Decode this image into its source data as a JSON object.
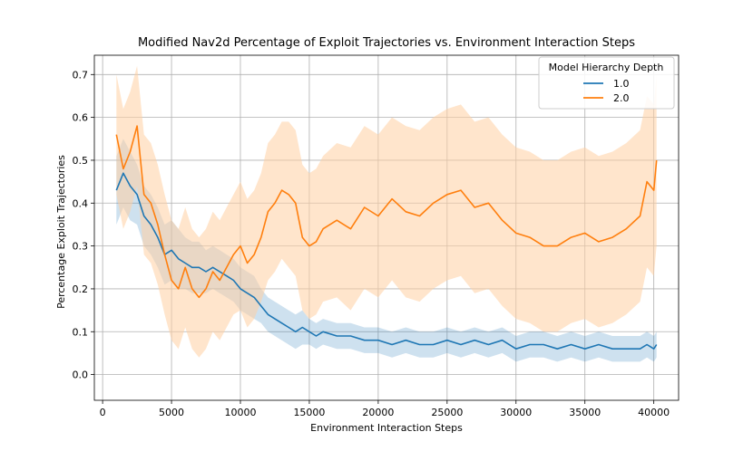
{
  "chart_data": {
    "type": "line",
    "title": "Modified Nav2d Percentage of Exploit Trajectories vs. Environment Interaction Steps",
    "xlabel": "Environment Interaction Steps",
    "ylabel": "Percentage Exploit Trajectories",
    "xlim": [
      -600,
      41800
    ],
    "ylim": [
      -0.06,
      0.745
    ],
    "xticks": [
      0,
      5000,
      10000,
      15000,
      20000,
      25000,
      30000,
      35000,
      40000
    ],
    "yticks": [
      0.0,
      0.1,
      0.2,
      0.3,
      0.4,
      0.5,
      0.6,
      0.7
    ],
    "ytick_labels": [
      "0.0",
      "0.1",
      "0.2",
      "0.3",
      "0.4",
      "0.5",
      "0.6",
      "0.7"
    ],
    "grid": true,
    "legend": {
      "title": "Model Hierarchy Depth",
      "position": "top-right"
    },
    "series": [
      {
        "name": "1.0",
        "color": "#1f77b4",
        "band_color": "#1f77b4",
        "x": [
          1000,
          1500,
          2000,
          2500,
          3000,
          3500,
          4000,
          4500,
          5000,
          5500,
          6000,
          6500,
          7000,
          7500,
          8000,
          8500,
          9000,
          9500,
          10000,
          10500,
          11000,
          11500,
          12000,
          12500,
          13000,
          13500,
          14000,
          14500,
          15000,
          15500,
          16000,
          17000,
          18000,
          19000,
          20000,
          21000,
          22000,
          23000,
          24000,
          25000,
          26000,
          27000,
          28000,
          29000,
          30000,
          31000,
          32000,
          33000,
          34000,
          35000,
          36000,
          37000,
          38000,
          39000,
          39500,
          40000,
          40200
        ],
        "values": [
          0.43,
          0.47,
          0.44,
          0.42,
          0.37,
          0.35,
          0.32,
          0.28,
          0.29,
          0.27,
          0.26,
          0.25,
          0.25,
          0.24,
          0.25,
          0.24,
          0.23,
          0.22,
          0.2,
          0.19,
          0.18,
          0.16,
          0.14,
          0.13,
          0.12,
          0.11,
          0.1,
          0.11,
          0.1,
          0.09,
          0.1,
          0.09,
          0.09,
          0.08,
          0.08,
          0.07,
          0.08,
          0.07,
          0.07,
          0.08,
          0.07,
          0.08,
          0.07,
          0.08,
          0.06,
          0.07,
          0.07,
          0.06,
          0.07,
          0.06,
          0.07,
          0.06,
          0.06,
          0.06,
          0.07,
          0.06,
          0.07
        ],
        "band_halfwidth": [
          0.08,
          0.08,
          0.08,
          0.07,
          0.07,
          0.07,
          0.07,
          0.07,
          0.07,
          0.07,
          0.06,
          0.06,
          0.06,
          0.05,
          0.05,
          0.05,
          0.05,
          0.05,
          0.05,
          0.05,
          0.05,
          0.04,
          0.04,
          0.04,
          0.04,
          0.04,
          0.04,
          0.04,
          0.03,
          0.03,
          0.03,
          0.03,
          0.03,
          0.03,
          0.03,
          0.03,
          0.03,
          0.03,
          0.03,
          0.03,
          0.03,
          0.03,
          0.03,
          0.03,
          0.03,
          0.03,
          0.03,
          0.03,
          0.03,
          0.03,
          0.03,
          0.03,
          0.03,
          0.03,
          0.03,
          0.03,
          0.03
        ]
      },
      {
        "name": "2.0",
        "color": "#ff7f0e",
        "band_color": "#ffcfa3",
        "x": [
          1000,
          1500,
          2000,
          2500,
          3000,
          3500,
          4000,
          4500,
          5000,
          5500,
          6000,
          6500,
          7000,
          7500,
          8000,
          8500,
          9000,
          9500,
          10000,
          10500,
          11000,
          11500,
          12000,
          12500,
          13000,
          13500,
          14000,
          14500,
          15000,
          15500,
          16000,
          17000,
          18000,
          19000,
          20000,
          21000,
          22000,
          23000,
          24000,
          25000,
          26000,
          27000,
          28000,
          29000,
          30000,
          31000,
          32000,
          33000,
          34000,
          35000,
          36000,
          37000,
          38000,
          39000,
          39500,
          40000,
          40200
        ],
        "values": [
          0.56,
          0.48,
          0.52,
          0.58,
          0.42,
          0.4,
          0.35,
          0.28,
          0.22,
          0.2,
          0.25,
          0.2,
          0.18,
          0.2,
          0.24,
          0.22,
          0.25,
          0.28,
          0.3,
          0.26,
          0.28,
          0.32,
          0.38,
          0.4,
          0.43,
          0.42,
          0.4,
          0.32,
          0.3,
          0.31,
          0.34,
          0.36,
          0.34,
          0.39,
          0.37,
          0.41,
          0.38,
          0.37,
          0.4,
          0.42,
          0.43,
          0.39,
          0.4,
          0.36,
          0.33,
          0.32,
          0.3,
          0.3,
          0.32,
          0.33,
          0.31,
          0.32,
          0.34,
          0.37,
          0.45,
          0.43,
          0.5
        ],
        "band_halfwidth": [
          0.14,
          0.14,
          0.14,
          0.14,
          0.14,
          0.14,
          0.14,
          0.14,
          0.14,
          0.14,
          0.14,
          0.14,
          0.14,
          0.14,
          0.14,
          0.14,
          0.14,
          0.14,
          0.15,
          0.15,
          0.15,
          0.15,
          0.16,
          0.16,
          0.16,
          0.17,
          0.17,
          0.17,
          0.17,
          0.17,
          0.17,
          0.18,
          0.19,
          0.19,
          0.19,
          0.19,
          0.2,
          0.2,
          0.2,
          0.2,
          0.2,
          0.2,
          0.2,
          0.2,
          0.2,
          0.2,
          0.2,
          0.2,
          0.2,
          0.2,
          0.2,
          0.2,
          0.2,
          0.2,
          0.2,
          0.2,
          0.2
        ]
      }
    ]
  }
}
